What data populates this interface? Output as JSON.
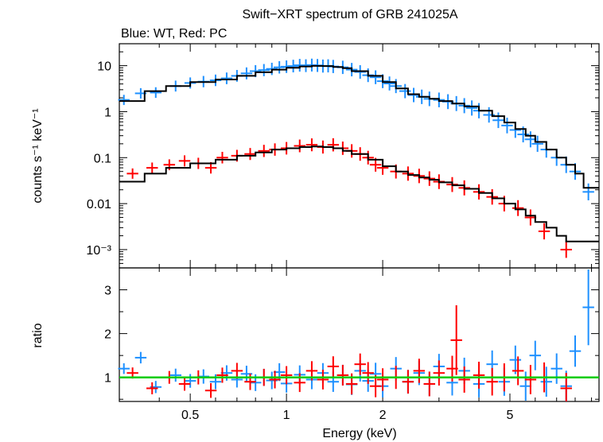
{
  "chart_data": [
    {
      "type": "scatter",
      "panel": "spectrum",
      "title": "Swift−XRT spectrum of GRB 241025A",
      "subtitle": "Blue: WT, Red: PC",
      "xlabel": "Energy (keV)",
      "ylabel": "counts s⁻¹ keV⁻¹",
      "x_scale": "log",
      "y_scale": "log",
      "xlim": [
        0.3,
        9.5
      ],
      "ylim": [
        0.0004,
        30
      ],
      "x_ticks": [
        {
          "value": 0.5,
          "label": "0.5"
        },
        {
          "value": 1,
          "label": "1"
        },
        {
          "value": 2,
          "label": "2"
        },
        {
          "value": 5,
          "label": "5"
        }
      ],
      "y_ticks": [
        {
          "value": 10,
          "label": "10"
        },
        {
          "value": 1,
          "label": "1"
        },
        {
          "value": 0.1,
          "label": "0.1"
        },
        {
          "value": 0.01,
          "label": "0.01"
        },
        {
          "value": 0.001,
          "label": "10⁻³"
        }
      ],
      "grid": false,
      "series": [
        {
          "key": "wt",
          "color": "#1e90ff",
          "points": [
            [
              0.31,
              1.8
            ],
            [
              0.35,
              2.5
            ],
            [
              0.39,
              2.6
            ],
            [
              0.45,
              3.6
            ],
            [
              0.5,
              4.2
            ],
            [
              0.55,
              4.5
            ],
            [
              0.6,
              4.8
            ],
            [
              0.65,
              5.3
            ],
            [
              0.7,
              6.0
            ],
            [
              0.75,
              6.8
            ],
            [
              0.8,
              7.6
            ],
            [
              0.85,
              8.0
            ],
            [
              0.9,
              8.5
            ],
            [
              0.95,
              9.2
            ],
            [
              1.0,
              9.5
            ],
            [
              1.05,
              9.8
            ],
            [
              1.1,
              10.2
            ],
            [
              1.15,
              10.0
            ],
            [
              1.2,
              10.3
            ],
            [
              1.25,
              10.1
            ],
            [
              1.3,
              9.8
            ],
            [
              1.35,
              9.9
            ],
            [
              1.4,
              9.6
            ],
            [
              1.5,
              9.2
            ],
            [
              1.6,
              8.2
            ],
            [
              1.7,
              7.3
            ],
            [
              1.8,
              6.2
            ],
            [
              1.9,
              5.6
            ],
            [
              2.0,
              4.6
            ],
            [
              2.1,
              4.1
            ],
            [
              2.2,
              3.6
            ],
            [
              2.35,
              2.8
            ],
            [
              2.5,
              2.3
            ],
            [
              2.65,
              2.1
            ],
            [
              2.8,
              1.9
            ],
            [
              3.0,
              1.8
            ],
            [
              3.2,
              1.65
            ],
            [
              3.4,
              1.5
            ],
            [
              3.6,
              1.35
            ],
            [
              3.8,
              1.2
            ],
            [
              4.0,
              1.05
            ],
            [
              4.3,
              0.85
            ],
            [
              4.6,
              0.65
            ],
            [
              4.9,
              0.5
            ],
            [
              5.2,
              0.4
            ],
            [
              5.5,
              0.32
            ],
            [
              5.8,
              0.25
            ],
            [
              6.1,
              0.2
            ],
            [
              6.5,
              0.15
            ],
            [
              7.0,
              0.1
            ],
            [
              7.5,
              0.07
            ],
            [
              8.0,
              0.05
            ],
            [
              8.8,
              0.018
            ]
          ]
        },
        {
          "key": "pc",
          "color": "#ff0000",
          "points": [
            [
              0.33,
              0.045
            ],
            [
              0.38,
              0.06
            ],
            [
              0.43,
              0.07
            ],
            [
              0.48,
              0.085
            ],
            [
              0.53,
              0.075
            ],
            [
              0.58,
              0.06
            ],
            [
              0.63,
              0.1
            ],
            [
              0.7,
              0.11
            ],
            [
              0.77,
              0.12
            ],
            [
              0.85,
              0.14
            ],
            [
              0.92,
              0.15
            ],
            [
              1.0,
              0.16
            ],
            [
              1.1,
              0.18
            ],
            [
              1.2,
              0.19
            ],
            [
              1.3,
              0.17
            ],
            [
              1.4,
              0.19
            ],
            [
              1.5,
              0.16
            ],
            [
              1.6,
              0.14
            ],
            [
              1.7,
              0.12
            ],
            [
              1.8,
              0.1
            ],
            [
              1.9,
              0.07
            ],
            [
              2.0,
              0.06
            ],
            [
              2.2,
              0.05
            ],
            [
              2.4,
              0.045
            ],
            [
              2.6,
              0.04
            ],
            [
              2.8,
              0.035
            ],
            [
              3.0,
              0.03
            ],
            [
              3.3,
              0.026
            ],
            [
              3.6,
              0.022
            ],
            [
              4.0,
              0.018
            ],
            [
              4.4,
              0.014
            ],
            [
              4.8,
              0.01
            ],
            [
              5.3,
              0.008
            ],
            [
              5.8,
              0.005
            ],
            [
              6.4,
              0.0025
            ],
            [
              7.5,
              0.001
            ]
          ]
        }
      ],
      "model": {
        "color": "#000000",
        "edges": [
          0.3,
          0.36,
          0.42,
          0.5,
          0.6,
          0.7,
          0.8,
          0.9,
          1.0,
          1.1,
          1.2,
          1.3,
          1.4,
          1.5,
          1.6,
          1.8,
          2.0,
          2.2,
          2.4,
          2.6,
          2.8,
          3.0,
          3.3,
          3.6,
          4.0,
          4.4,
          4.8,
          5.2,
          5.6,
          6.0,
          6.5,
          7.0,
          7.5,
          8.0,
          8.5,
          9.5
        ],
        "wt": [
          1.7,
          2.8,
          3.6,
          4.4,
          5.0,
          6.0,
          7.2,
          8.2,
          9.0,
          9.6,
          9.9,
          9.8,
          9.4,
          8.8,
          7.6,
          6.0,
          4.4,
          3.2,
          2.4,
          2.1,
          1.9,
          1.7,
          1.5,
          1.3,
          1.05,
          0.8,
          0.58,
          0.42,
          0.3,
          0.22,
          0.15,
          0.1,
          0.07,
          0.045,
          0.022
        ],
        "pc": [
          0.03,
          0.045,
          0.06,
          0.075,
          0.09,
          0.11,
          0.13,
          0.15,
          0.16,
          0.17,
          0.175,
          0.17,
          0.16,
          0.14,
          0.12,
          0.09,
          0.065,
          0.05,
          0.042,
          0.037,
          0.033,
          0.029,
          0.025,
          0.021,
          0.017,
          0.013,
          0.01,
          0.0075,
          0.0055,
          0.004,
          0.003,
          0.002,
          0.0015,
          0.0015,
          0.0015
        ]
      }
    },
    {
      "type": "scatter",
      "panel": "ratio",
      "xlabel": "Energy (keV)",
      "ylabel": "ratio",
      "x_scale": "log",
      "y_scale": "linear",
      "xlim": [
        0.3,
        9.5
      ],
      "ylim": [
        0.45,
        3.5
      ],
      "y_ticks": [
        {
          "value": 1,
          "label": "1"
        },
        {
          "value": 2,
          "label": "2"
        },
        {
          "value": 3,
          "label": "3"
        }
      ],
      "grid": false,
      "reference_line": {
        "value": 1,
        "color": "#00cc00"
      },
      "series": [
        {
          "key": "wt",
          "color": "#1e90ff",
          "points": [
            [
              0.31,
              1.2
            ],
            [
              0.35,
              1.45
            ],
            [
              0.39,
              0.78
            ],
            [
              0.45,
              1.05
            ],
            [
              0.5,
              0.92
            ],
            [
              0.55,
              1.02
            ],
            [
              0.6,
              0.9
            ],
            [
              0.65,
              1.1
            ],
            [
              0.7,
              0.95
            ],
            [
              0.75,
              1.08
            ],
            [
              0.8,
              0.88
            ],
            [
              0.85,
              1.0
            ],
            [
              0.9,
              0.93
            ],
            [
              0.95,
              1.12
            ],
            [
              1.0,
              0.86
            ],
            [
              1.1,
              1.06
            ],
            [
              1.2,
              0.95
            ],
            [
              1.3,
              1.1
            ],
            [
              1.4,
              0.9
            ],
            [
              1.5,
              1.05
            ],
            [
              1.6,
              0.84
            ],
            [
              1.7,
              1.15
            ],
            [
              1.8,
              0.92
            ],
            [
              1.9,
              1.08
            ],
            [
              2.0,
              0.8
            ],
            [
              2.2,
              1.2
            ],
            [
              2.4,
              0.9
            ],
            [
              2.6,
              1.1
            ],
            [
              2.8,
              0.85
            ],
            [
              3.0,
              1.25
            ],
            [
              3.3,
              0.88
            ],
            [
              3.6,
              1.15
            ],
            [
              4.0,
              0.85
            ],
            [
              4.4,
              1.3
            ],
            [
              4.8,
              0.9
            ],
            [
              5.2,
              1.4
            ],
            [
              5.6,
              0.8
            ],
            [
              6.0,
              1.5
            ],
            [
              6.5,
              0.9
            ],
            [
              7.0,
              1.2
            ],
            [
              7.5,
              0.8
            ],
            [
              8.0,
              1.6
            ],
            [
              8.8,
              2.6
            ]
          ]
        },
        {
          "key": "pc",
          "color": "#ff0000",
          "points": [
            [
              0.33,
              1.1
            ],
            [
              0.38,
              0.75
            ],
            [
              0.43,
              1.0
            ],
            [
              0.48,
              0.85
            ],
            [
              0.53,
              1.0
            ],
            [
              0.58,
              0.7
            ],
            [
              0.63,
              1.05
            ],
            [
              0.7,
              1.15
            ],
            [
              0.77,
              0.9
            ],
            [
              0.85,
              1.0
            ],
            [
              0.92,
              0.95
            ],
            [
              1.0,
              1.05
            ],
            [
              1.1,
              0.88
            ],
            [
              1.2,
              1.15
            ],
            [
              1.3,
              0.95
            ],
            [
              1.4,
              1.25
            ],
            [
              1.5,
              1.05
            ],
            [
              1.6,
              0.85
            ],
            [
              1.7,
              1.3
            ],
            [
              1.8,
              1.1
            ],
            [
              1.9,
              0.8
            ],
            [
              2.0,
              0.95
            ],
            [
              2.2,
              1.0
            ],
            [
              2.4,
              0.9
            ],
            [
              2.6,
              1.15
            ],
            [
              2.8,
              0.85
            ],
            [
              3.0,
              1.1
            ],
            [
              3.3,
              1.2
            ],
            [
              3.4,
              1.85
            ],
            [
              3.6,
              0.95
            ],
            [
              4.0,
              1.05
            ],
            [
              4.4,
              0.9
            ],
            [
              4.8,
              1.0
            ],
            [
              5.3,
              1.15
            ],
            [
              5.8,
              0.95
            ],
            [
              6.4,
              1.0
            ],
            [
              7.5,
              0.75
            ]
          ]
        }
      ]
    }
  ]
}
